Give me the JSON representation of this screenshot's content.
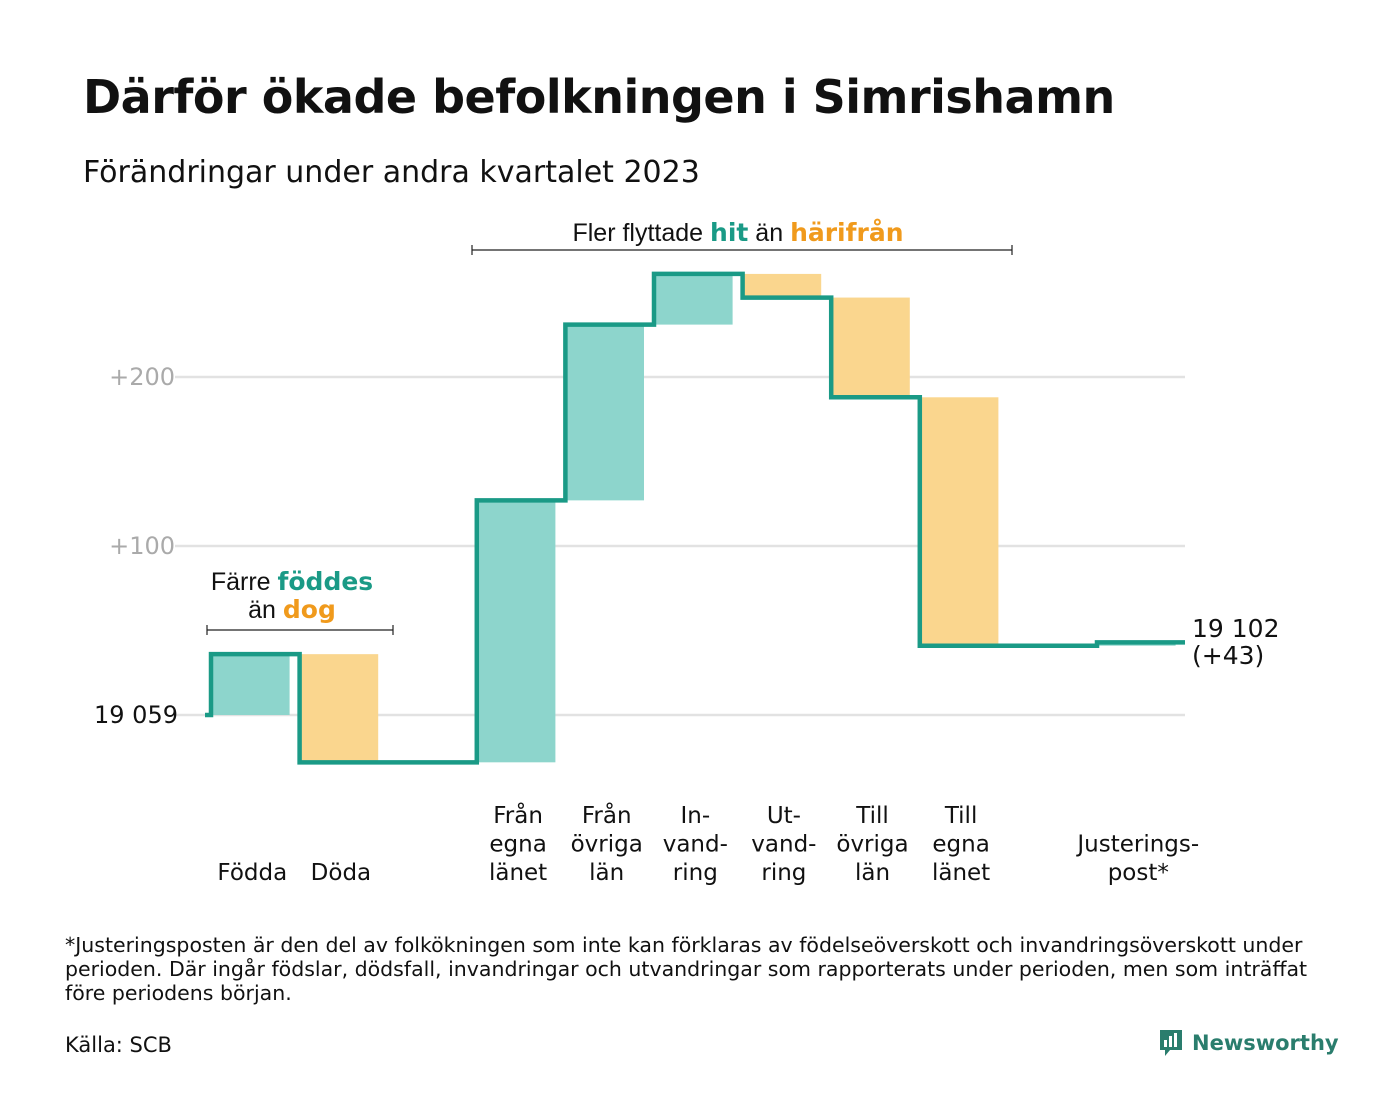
{
  "title": "Därför ökade befolkningen i Simrishamn",
  "subtitle": "Förändringar under andra kvartalet 2023",
  "footnote": "*Justeringsposten är den del av folkökningen som inte kan förklaras av födelseöverskott och invandringsöverskott under perioden. Där ingår födslar, dödsfall, invandringar och utvandringar som rapporterats under perioden, men som inträffat före periodens början.",
  "source": "Källa: SCB",
  "logo": {
    "text": "Newsworthy",
    "icon": "bar-chart-bubble-icon",
    "color": "#2a7d6d"
  },
  "colors": {
    "inflow": "#8dd5cc",
    "outflow": "#fad68e",
    "line": "#1a9a86",
    "highlight_teal": "#1a9a86",
    "highlight_orange": "#f09a1c"
  },
  "annotations": {
    "births": {
      "line1_pre": "Färre ",
      "line1_hl": "föddes",
      "line2_pre": "än ",
      "line2_hl": "dog"
    },
    "migration": {
      "pre": "Fler flyttade ",
      "hl1": "hit",
      "mid": " än ",
      "hl2": "härifrån"
    }
  },
  "chart_data": {
    "type": "waterfall",
    "base": 19059,
    "base_label": "19  059",
    "yticks": [
      {
        "value": 100,
        "label": "+100"
      },
      {
        "value": 200,
        "label": "+200"
      }
    ],
    "ylim": [
      -45,
      255
    ],
    "steps": [
      {
        "lines": [
          "Födda"
        ],
        "delta": 36,
        "kind": "in"
      },
      {
        "lines": [
          "Döda"
        ],
        "delta": -64,
        "kind": "out"
      },
      {
        "lines": [],
        "delta": 0,
        "kind": "gap"
      },
      {
        "lines": [
          "Från",
          "egna",
          "länet"
        ],
        "delta": 155,
        "kind": "in"
      },
      {
        "lines": [
          "Från",
          "övriga",
          "län"
        ],
        "delta": 104,
        "kind": "in"
      },
      {
        "lines": [
          "In-",
          "vand-",
          "ring"
        ],
        "delta": 30,
        "kind": "in"
      },
      {
        "lines": [
          "Ut-",
          "vand-",
          "ring"
        ],
        "delta": -14,
        "kind": "out"
      },
      {
        "lines": [
          "Till",
          "övriga",
          "län"
        ],
        "delta": -59,
        "kind": "out"
      },
      {
        "lines": [
          "Till",
          "egna",
          "länet"
        ],
        "delta": -147,
        "kind": "out"
      },
      {
        "lines": [],
        "delta": 0,
        "kind": "gap"
      },
      {
        "lines": [
          "Justerings-",
          "post*"
        ],
        "delta": 2,
        "kind": "in"
      }
    ],
    "end_label": [
      "19 102",
      "(+43)"
    ]
  }
}
